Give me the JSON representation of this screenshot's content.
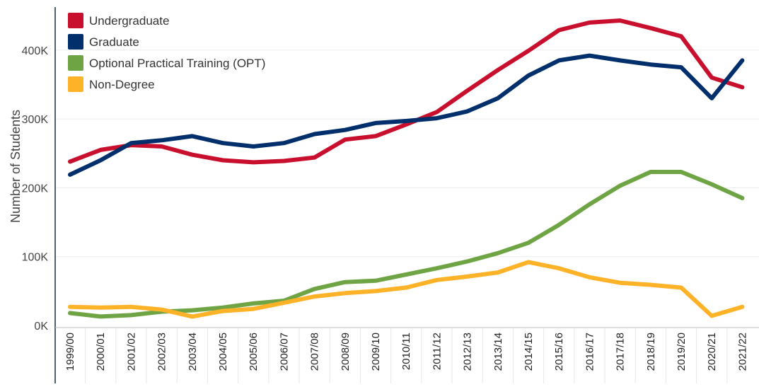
{
  "chart_data": {
    "type": "line",
    "title": "",
    "xlabel": "",
    "ylabel": "Number of Students",
    "ylim": [
      0,
      450000
    ],
    "yticks": [
      0,
      100000,
      200000,
      300000,
      400000
    ],
    "ytick_labels": [
      "0K",
      "100K",
      "200K",
      "300K",
      "400K"
    ],
    "grid": true,
    "legend_position": "top-left",
    "x": [
      "1999/00",
      "2000/01",
      "2001/02",
      "2002/03",
      "2003/04",
      "2004/05",
      "2005/06",
      "2006/07",
      "2007/08",
      "2008/09",
      "2009/10",
      "2010/11",
      "2011/12",
      "2012/13",
      "2013/14",
      "2014/15",
      "2015/16",
      "2016/17",
      "2017/18",
      "2018/19",
      "2019/20",
      "2020/21",
      "2021/22"
    ],
    "series": [
      {
        "name": "Undergraduate",
        "color": "#c8102e",
        "values": [
          238000,
          255000,
          262000,
          260000,
          248000,
          240000,
          237000,
          239000,
          244000,
          270000,
          275000,
          292000,
          310000,
          341000,
          371000,
          399000,
          429000,
          440000,
          443000,
          432000,
          420000,
          360000,
          346000
        ]
      },
      {
        "name": "Graduate",
        "color": "#002f6c",
        "values": [
          219000,
          240000,
          265000,
          269000,
          275000,
          265000,
          260000,
          265000,
          278000,
          284000,
          294000,
          297000,
          301000,
          311000,
          330000,
          363000,
          385000,
          392000,
          385000,
          379000,
          375000,
          330000,
          385000
        ]
      },
      {
        "name": "Optional Practical Training (OPT)",
        "color": "#6fa445",
        "values": [
          18000,
          13000,
          15000,
          20000,
          22000,
          26000,
          32000,
          36000,
          53000,
          63000,
          65000,
          74000,
          83000,
          93000,
          105000,
          120000,
          146000,
          176000,
          203000,
          223000,
          223000,
          205000,
          185000
        ]
      },
      {
        "name": "Non-Degree",
        "color": "#fdb227",
        "values": [
          27000,
          26000,
          27000,
          23000,
          13000,
          21000,
          24000,
          33000,
          42000,
          47000,
          50000,
          55000,
          66000,
          71000,
          77000,
          92000,
          83000,
          70000,
          62000,
          59000,
          55000,
          14000,
          27000
        ]
      }
    ]
  }
}
